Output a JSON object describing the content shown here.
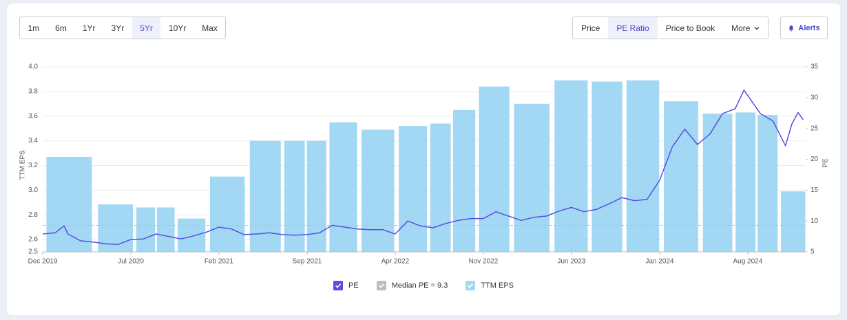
{
  "toolbar": {
    "ranges": [
      "1m",
      "6m",
      "1Yr",
      "3Yr",
      "5Yr",
      "10Yr",
      "Max"
    ],
    "selected_range": "5Yr",
    "metrics": [
      "Price",
      "PE Ratio",
      "Price to Book",
      "More"
    ],
    "selected_metric": "PE Ratio",
    "alerts": "Alerts"
  },
  "chart_data": {
    "type": "combo",
    "ylabel": "TTM EPS",
    "y2label": "PE",
    "xlim": [
      0,
      60.6
    ],
    "xticks": [
      {
        "value": 0,
        "label": "Dec 2019"
      },
      {
        "value": 7,
        "label": "Jul 2020"
      },
      {
        "value": 14,
        "label": "Feb 2021"
      },
      {
        "value": 21,
        "label": "Sep 2021"
      },
      {
        "value": 28,
        "label": "Apr 2022"
      },
      {
        "value": 35,
        "label": "Nov 2022"
      },
      {
        "value": 42,
        "label": "Jun 2023"
      },
      {
        "value": 49,
        "label": "Jan 2024"
      },
      {
        "value": 56,
        "label": "Aug 2024"
      }
    ],
    "ylim": [
      2.5,
      4.0
    ],
    "yticks": [
      2.5,
      2.6,
      2.8,
      {
        "value": 3,
        "label": "3.0"
      },
      3.2,
      3.4,
      3.6,
      3.8,
      {
        "value": 4,
        "label": "4.0"
      }
    ],
    "y2lim": [
      5,
      35
    ],
    "y2ticks": [
      5,
      10,
      15,
      20,
      25,
      30,
      35
    ],
    "grid": true,
    "series": [
      {
        "name": "PE",
        "type": "line",
        "axis": "y2",
        "color": "#5b4de0",
        "x": [
          0,
          1,
          1.7,
          2,
          3,
          4,
          5,
          6,
          7,
          8,
          9,
          10,
          11,
          12,
          13,
          14,
          15,
          16,
          17,
          18,
          19,
          20,
          21,
          22,
          23,
          24,
          25,
          26,
          27,
          28,
          29,
          30,
          31,
          32,
          33,
          34,
          35,
          36,
          37,
          38,
          39,
          40,
          41,
          42,
          43,
          44,
          45,
          46,
          47,
          48,
          49,
          50,
          51,
          52,
          53,
          54,
          55,
          55.7,
          57,
          58,
          59,
          59.5,
          60,
          60.4
        ],
        "values": [
          7.9,
          8.1,
          9.2,
          7.9,
          6.8,
          6.6,
          6.3,
          6.2,
          7.0,
          7.1,
          7.9,
          7.5,
          7.1,
          7.6,
          8.2,
          9.0,
          8.7,
          7.8,
          7.9,
          8.1,
          7.8,
          7.7,
          7.8,
          8.1,
          9.3,
          9.0,
          8.7,
          8.6,
          8.6,
          7.9,
          10.0,
          9.2,
          8.9,
          9.6,
          10.1,
          10.4,
          10.4,
          11.5,
          10.8,
          10.1,
          10.6,
          10.8,
          11.6,
          12.2,
          11.5,
          11.9,
          12.8,
          13.8,
          13.3,
          13.5,
          16.6,
          22.0,
          24.9,
          22.4,
          24.1,
          27.4,
          28.2,
          31.2,
          27.4,
          26.2,
          22.2,
          25.7,
          27.6,
          26.4
        ]
      },
      {
        "name": "Median PE = 9.3",
        "type": "hline",
        "axis": "y2",
        "color": "#bdbdbd",
        "values": [
          9.3
        ]
      },
      {
        "name": "TTM EPS",
        "type": "bar",
        "color": "#a3d8f5",
        "x": [
          2.1,
          6.2,
          8.4,
          9.6,
          11.6,
          14.6,
          17.9,
          20.2,
          21.6,
          23.7,
          26.6,
          29.6,
          31.7,
          33.3,
          35.7,
          38.8,
          42.1,
          44.8,
          47.6,
          50.7,
          53.8,
          56.0,
          57.4,
          59.6
        ],
        "values": [
          3.27,
          2.885,
          2.86,
          2.86,
          2.77,
          3.11,
          3.4,
          3.4,
          3.4,
          3.55,
          3.49,
          3.52,
          3.54,
          3.65,
          3.84,
          3.7,
          3.89,
          3.88,
          3.89,
          3.72,
          3.62,
          3.63,
          3.61,
          2.99
        ]
      }
    ]
  }
}
